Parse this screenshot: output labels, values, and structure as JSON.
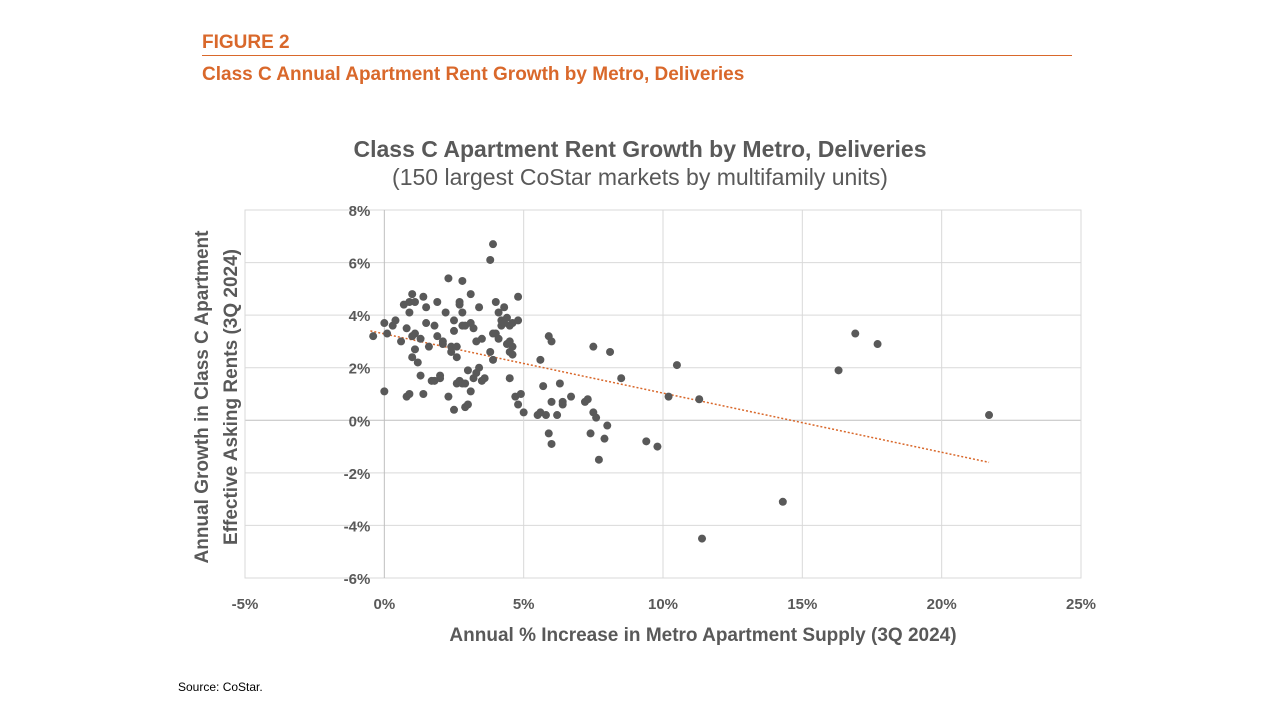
{
  "figure": {
    "label": "FIGURE 2",
    "title": "Class C Annual Apartment Rent Growth by Metro, Deliveries",
    "source": "Source: CoStar."
  },
  "colors": {
    "accent": "#d9682b",
    "points": "#595959",
    "grid": "#d9d9d9",
    "text": "#595959",
    "trend": "#d9682b"
  },
  "chart_data": {
    "type": "scatter",
    "title": "Class C Apartment Rent Growth by Metro, Deliveries",
    "subtitle": "(150 largest CoStar markets by multifamily units)",
    "xlabel": "Annual % Increase in Metro Apartment Supply (3Q 2024)",
    "ylabel_line1": "Annual Growth in Class C Apartment",
    "ylabel_line2": "Effective Asking Rents (3Q 2024)",
    "xlim": [
      -5,
      25
    ],
    "ylim": [
      -6,
      8
    ],
    "xticks": [
      -5,
      0,
      5,
      10,
      15,
      20,
      25
    ],
    "yticks": [
      -6,
      -4,
      -2,
      0,
      2,
      4,
      6,
      8
    ],
    "xtick_labels": [
      "-5%",
      "0%",
      "5%",
      "10%",
      "15%",
      "20%",
      "25%"
    ],
    "ytick_labels": [
      "-6%",
      "-4%",
      "-2%",
      "0%",
      "2%",
      "4%",
      "6%",
      "8%"
    ],
    "grid": true,
    "trendline": {
      "x": [
        -0.5,
        21.7
      ],
      "y": [
        3.4,
        -1.6
      ]
    },
    "points": [
      [
        -0.4,
        3.2
      ],
      [
        0.0,
        3.7
      ],
      [
        0.1,
        3.3
      ],
      [
        0.3,
        3.6
      ],
      [
        0.4,
        3.8
      ],
      [
        0.0,
        1.1
      ],
      [
        0.6,
        3.0
      ],
      [
        0.7,
        4.4
      ],
      [
        0.8,
        3.5
      ],
      [
        0.9,
        4.5
      ],
      [
        0.9,
        4.1
      ],
      [
        1.0,
        4.8
      ],
      [
        1.0,
        3.2
      ],
      [
        1.1,
        4.5
      ],
      [
        1.1,
        3.3
      ],
      [
        1.0,
        2.4
      ],
      [
        1.2,
        2.2
      ],
      [
        1.1,
        2.7
      ],
      [
        1.3,
        1.7
      ],
      [
        1.3,
        3.1
      ],
      [
        1.4,
        4.7
      ],
      [
        1.5,
        4.3
      ],
      [
        1.5,
        3.7
      ],
      [
        1.6,
        2.8
      ],
      [
        1.4,
        1.0
      ],
      [
        0.8,
        0.9
      ],
      [
        0.9,
        1.0
      ],
      [
        1.7,
        1.5
      ],
      [
        1.8,
        1.5
      ],
      [
        1.8,
        3.6
      ],
      [
        1.9,
        4.5
      ],
      [
        1.9,
        3.2
      ],
      [
        2.0,
        1.6
      ],
      [
        2.0,
        1.7
      ],
      [
        2.1,
        2.9
      ],
      [
        2.1,
        3.0
      ],
      [
        2.2,
        4.1
      ],
      [
        2.3,
        5.4
      ],
      [
        2.3,
        0.9
      ],
      [
        2.4,
        2.8
      ],
      [
        2.4,
        2.6
      ],
      [
        2.5,
        3.8
      ],
      [
        2.5,
        3.4
      ],
      [
        2.5,
        0.4
      ],
      [
        2.6,
        2.8
      ],
      [
        2.6,
        2.4
      ],
      [
        2.6,
        1.4
      ],
      [
        2.7,
        4.5
      ],
      [
        2.7,
        4.4
      ],
      [
        2.7,
        1.5
      ],
      [
        2.8,
        5.3
      ],
      [
        2.8,
        4.1
      ],
      [
        2.8,
        3.6
      ],
      [
        2.8,
        1.4
      ],
      [
        2.9,
        3.6
      ],
      [
        2.9,
        1.4
      ],
      [
        2.9,
        0.5
      ],
      [
        3.0,
        1.9
      ],
      [
        3.0,
        0.6
      ],
      [
        3.1,
        4.8
      ],
      [
        3.1,
        3.7
      ],
      [
        3.1,
        1.1
      ],
      [
        3.2,
        3.5
      ],
      [
        3.2,
        1.6
      ],
      [
        3.3,
        1.8
      ],
      [
        3.3,
        3.0
      ],
      [
        3.4,
        4.3
      ],
      [
        3.4,
        2.0
      ],
      [
        3.5,
        3.1
      ],
      [
        3.5,
        1.5
      ],
      [
        3.6,
        1.6
      ],
      [
        3.8,
        6.1
      ],
      [
        3.9,
        6.7
      ],
      [
        3.9,
        3.3
      ],
      [
        3.8,
        2.6
      ],
      [
        3.9,
        2.3
      ],
      [
        4.0,
        4.5
      ],
      [
        4.0,
        3.3
      ],
      [
        4.1,
        4.1
      ],
      [
        4.1,
        3.1
      ],
      [
        4.2,
        3.8
      ],
      [
        4.2,
        3.6
      ],
      [
        4.3,
        4.3
      ],
      [
        4.3,
        3.7
      ],
      [
        4.4,
        3.9
      ],
      [
        4.4,
        2.9
      ],
      [
        4.5,
        3.6
      ],
      [
        4.5,
        3.0
      ],
      [
        4.5,
        2.6
      ],
      [
        4.5,
        1.6
      ],
      [
        4.6,
        3.7
      ],
      [
        4.6,
        2.8
      ],
      [
        4.6,
        2.5
      ],
      [
        4.7,
        0.9
      ],
      [
        4.8,
        0.6
      ],
      [
        4.8,
        4.7
      ],
      [
        4.8,
        3.8
      ],
      [
        4.9,
        1.0
      ],
      [
        5.0,
        0.3
      ],
      [
        5.5,
        0.2
      ],
      [
        5.6,
        0.3
      ],
      [
        5.6,
        2.3
      ],
      [
        5.7,
        1.3
      ],
      [
        5.8,
        0.2
      ],
      [
        5.9,
        3.2
      ],
      [
        6.0,
        3.0
      ],
      [
        5.9,
        -0.5
      ],
      [
        6.0,
        -0.9
      ],
      [
        6.0,
        0.7
      ],
      [
        6.2,
        0.2
      ],
      [
        6.3,
        1.4
      ],
      [
        6.4,
        0.6
      ],
      [
        6.4,
        0.7
      ],
      [
        6.7,
        0.9
      ],
      [
        7.2,
        0.7
      ],
      [
        7.3,
        0.8
      ],
      [
        7.5,
        2.8
      ],
      [
        7.4,
        -0.5
      ],
      [
        7.5,
        0.3
      ],
      [
        7.6,
        0.1
      ],
      [
        7.7,
        -1.5
      ],
      [
        7.9,
        -0.7
      ],
      [
        8.0,
        -0.2
      ],
      [
        8.1,
        2.6
      ],
      [
        8.5,
        1.6
      ],
      [
        9.4,
        -0.8
      ],
      [
        9.8,
        -1.0
      ],
      [
        10.2,
        0.9
      ],
      [
        10.5,
        2.1
      ],
      [
        11.3,
        0.8
      ],
      [
        11.4,
        -4.5
      ],
      [
        14.3,
        -3.1
      ],
      [
        16.3,
        1.9
      ],
      [
        16.9,
        3.3
      ],
      [
        17.7,
        2.9
      ],
      [
        21.7,
        0.2
      ]
    ]
  }
}
